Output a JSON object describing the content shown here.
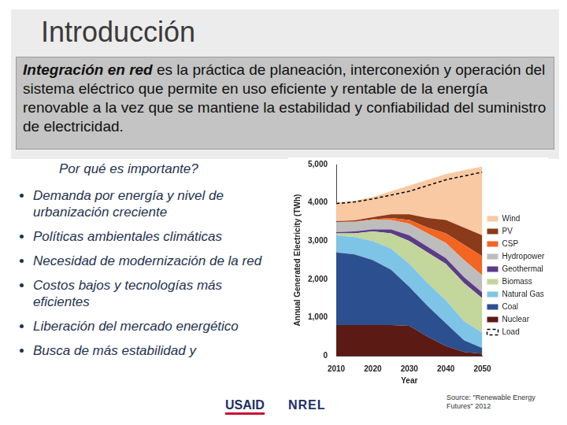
{
  "slide": {
    "title": "Introducción",
    "definition": {
      "term": "Integración en red",
      "text": "es la práctica de planeación, interconexión y operación del sistema eléctrico que permite en uso eficiente y rentable de la energía renovable a la vez que se mantiene la estabilidad y confiabilidad del suministro de electricidad."
    },
    "subtitle": "Por qué es importante?",
    "bullets": [
      "Demanda por energía y nivel de urbanización creciente",
      "Políticas ambientales climáticas",
      "Necesidad de modernización de la red",
      "Costos bajos y tecnologías más eficientes",
      "Liberación del mercado energético",
      "Busca de más estabilidad y"
    ],
    "logos": [
      "USAID",
      "NREL"
    ],
    "source": "Source: \"Renewable Energy Futures\" 2012"
  },
  "chart_data": {
    "type": "area",
    "stacked": true,
    "xlabel": "Year",
    "ylabel": "Annual Generated Electricity (TWh)",
    "x": [
      2010,
      2015,
      2020,
      2025,
      2030,
      2035,
      2040,
      2045,
      2050
    ],
    "xlim": [
      2010,
      2050
    ],
    "xticks": [
      2010,
      2020,
      2030,
      2040,
      2050
    ],
    "ylim": [
      0,
      5000
    ],
    "yticks": [
      0,
      {
        "value": 1000,
        "label": "1,000"
      },
      {
        "value": 2000,
        "label": "2,000"
      },
      {
        "value": 3000,
        "label": "3,000"
      },
      {
        "value": 4000,
        "label": "4,000"
      },
      {
        "value": 5000,
        "label": "5,000"
      }
    ],
    "grid": false,
    "legend": "right",
    "series": [
      {
        "name": "Load",
        "type": "line",
        "line_style": "dashed",
        "color": "#000000",
        "values": [
          3980,
          4020,
          4100,
          4200,
          4300,
          4450,
          4600,
          4700,
          4800
        ]
      },
      {
        "name": "Nuclear",
        "color": "#5c1a14",
        "values": [
          800,
          800,
          800,
          800,
          780,
          500,
          250,
          100,
          50
        ]
      },
      {
        "name": "Coal",
        "color": "#2c4f8f",
        "values": [
          1900,
          1850,
          1700,
          1450,
          1020,
          800,
          600,
          300,
          150
        ]
      },
      {
        "name": "Natural Gas",
        "color": "#7ec4e6",
        "values": [
          450,
          450,
          500,
          550,
          600,
          600,
          600,
          500,
          400
        ]
      },
      {
        "name": "Biomass",
        "color": "#c3d69b",
        "values": [
          50,
          100,
          250,
          400,
          600,
          800,
          950,
          1000,
          900
        ]
      },
      {
        "name": "Geothermal",
        "color": "#5b3c88",
        "values": [
          30,
          50,
          50,
          100,
          150,
          150,
          150,
          150,
          150
        ]
      },
      {
        "name": "Hydropower",
        "color": "#bdbdbd",
        "values": [
          270,
          250,
          250,
          250,
          300,
          350,
          400,
          450,
          450
        ]
      },
      {
        "name": "CSP",
        "color": "#f26522",
        "values": [
          0,
          10,
          20,
          50,
          100,
          150,
          250,
          400,
          500
        ]
      },
      {
        "name": "PV",
        "color": "#8b3a1a",
        "values": [
          20,
          30,
          50,
          100,
          150,
          250,
          350,
          450,
          550
        ]
      },
      {
        "name": "Wind",
        "color": "#f9c9a3",
        "values": [
          480,
          510,
          530,
          600,
          750,
          1000,
          1200,
          1500,
          1800
        ]
      }
    ]
  }
}
